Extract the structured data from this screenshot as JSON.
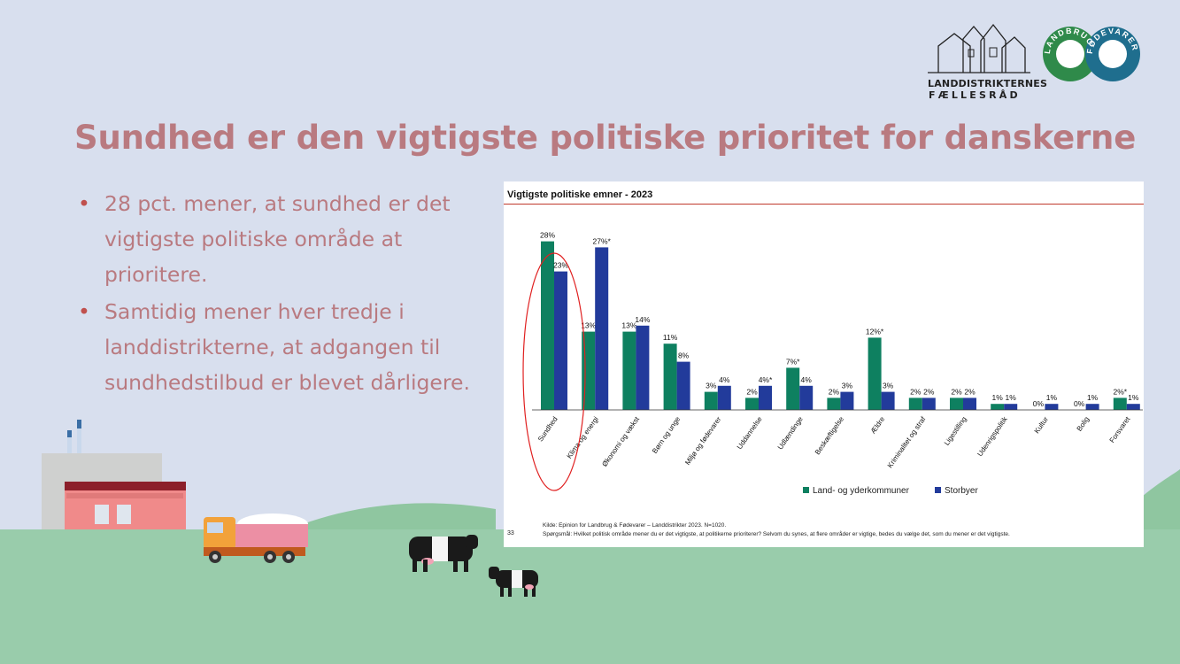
{
  "slide": {
    "title": "Sundhed er den vigtigste politiske prioritet for danskerne",
    "bullets": [
      "28 pct. mener, at sundhed er det vigtigste politiske område at prioritere.",
      "Samtidig mener hver tredje i landdistrikterne, at adgangen til sundhedstilbud er blevet dårligere."
    ]
  },
  "logos": {
    "landdistrikterne": {
      "line1": "LANDDISTRIKTERNES",
      "line2": "FÆLLESRÅD"
    },
    "landbrug": {
      "left_text": "LANDBRUG",
      "right_text": "FØDEVARER"
    }
  },
  "chart_meta": {
    "source": "Kilde: Epinion for Landbrug & Fødevarer – Landdistrikter 2023. N=1020.",
    "question": "Spørgsmål: Hvilket politisk område mener du er det vigtigste, at politikerne prioriterer? Selvom du synes, at flere områder er vigtige, bedes du vælge det, som du mener er det vigtigste.",
    "page_number": "33"
  },
  "colors": {
    "title": "#b97a80",
    "series_land": "#0e8060",
    "series_storbyer": "#223b9b",
    "ground": "#99ccab",
    "hill": "#8fc6a0",
    "highlight": "#e02020"
  },
  "chart_data": {
    "type": "bar",
    "title": "Vigtigste politiske emner - 2023",
    "categories": [
      "Sundhed",
      "Klima og energi",
      "Økonomi og vækst",
      "Børn og unge",
      "Miljø og fødevarer",
      "Uddannelse",
      "Udlændinge",
      "Beskæftigelse",
      "Ældre",
      "Kriminalitet og straf",
      "Ligestilling",
      "Udenrigspolitik",
      "Kultur",
      "Bolig",
      "Forsvaret"
    ],
    "series": [
      {
        "name": "Land- og yderkommuner",
        "values": [
          28,
          13,
          13,
          11,
          3,
          2,
          7,
          2,
          12,
          2,
          2,
          1,
          0,
          0,
          2
        ],
        "labels": [
          "28%",
          "13%",
          "13%",
          "11%",
          "3%",
          "2%",
          "7%*",
          "2%",
          "12%*",
          "2%",
          "2%",
          "1%",
          "0%",
          "0%",
          "2%*"
        ]
      },
      {
        "name": "Storbyer",
        "values": [
          23,
          27,
          14,
          8,
          4,
          4,
          4,
          3,
          3,
          2,
          2,
          1,
          1,
          1,
          1
        ],
        "labels": [
          "23%",
          "27%*",
          "14%",
          "8%",
          "4%",
          "4%*",
          "4%",
          "3%",
          "3%",
          "2%",
          "2%",
          "1%",
          "1%",
          "1%",
          "1%"
        ]
      }
    ],
    "ylim": [
      0,
      30
    ],
    "grid": false,
    "legend": "bottom",
    "highlighted_category": "Sundhed"
  }
}
